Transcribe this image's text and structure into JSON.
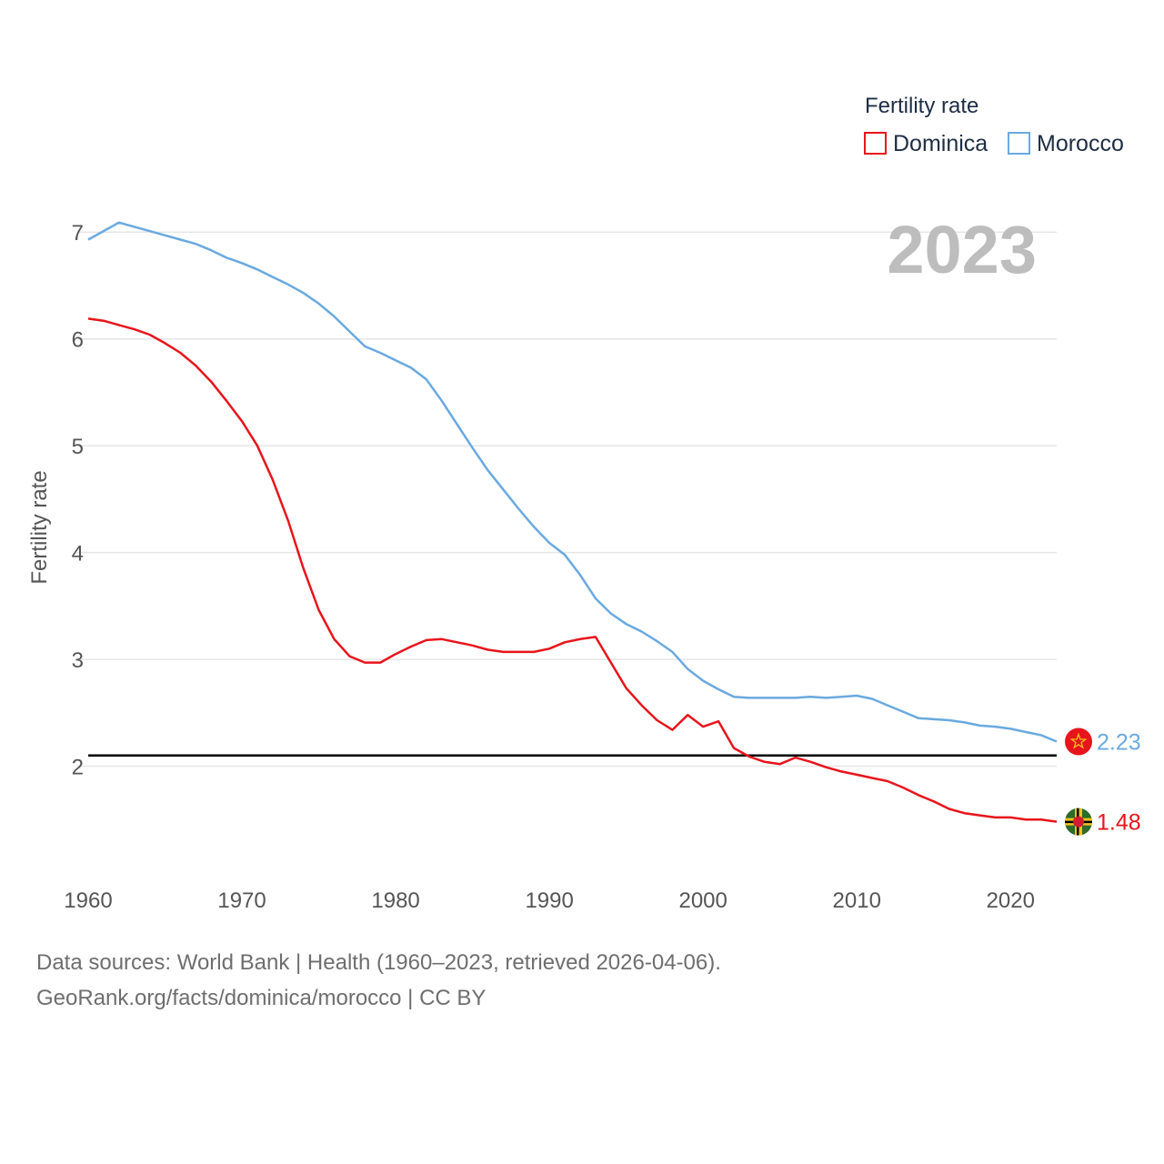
{
  "chart_data": {
    "type": "line",
    "title": "",
    "ylabel": "Fertility rate",
    "xlabel": "",
    "xlim": [
      1960,
      2023
    ],
    "ylim": [
      1.0,
      7.3
    ],
    "xticks": [
      1960,
      1970,
      1980,
      1990,
      2000,
      2010,
      2020
    ],
    "yticks": [
      2,
      3,
      4,
      5,
      6,
      7
    ],
    "grid": true,
    "year_display": "2023",
    "legend": {
      "title": "Fertility rate",
      "position": "top-right"
    },
    "reference_line": {
      "value": 2.1,
      "color": "#000000"
    },
    "x": [
      1960,
      1961,
      1962,
      1963,
      1964,
      1965,
      1966,
      1967,
      1968,
      1969,
      1970,
      1971,
      1972,
      1973,
      1974,
      1975,
      1976,
      1977,
      1978,
      1979,
      1980,
      1981,
      1982,
      1983,
      1984,
      1985,
      1986,
      1987,
      1988,
      1989,
      1990,
      1991,
      1992,
      1993,
      1994,
      1995,
      1996,
      1997,
      1998,
      1999,
      2000,
      2001,
      2002,
      2003,
      2004,
      2005,
      2006,
      2007,
      2008,
      2009,
      2010,
      2011,
      2012,
      2013,
      2014,
      2015,
      2016,
      2017,
      2018,
      2019,
      2020,
      2021,
      2022,
      2023
    ],
    "series": [
      {
        "name": "Dominica",
        "color": "#e8141b",
        "end_value": "1.48",
        "values": [
          6.19,
          6.17,
          6.13,
          6.09,
          6.04,
          5.96,
          5.87,
          5.75,
          5.6,
          5.42,
          5.23,
          5.0,
          4.68,
          4.3,
          3.85,
          3.46,
          3.19,
          3.03,
          2.97,
          2.97,
          3.05,
          3.12,
          3.18,
          3.19,
          3.16,
          3.13,
          3.09,
          3.07,
          3.07,
          3.07,
          3.1,
          3.16,
          3.19,
          3.21,
          2.97,
          2.73,
          2.57,
          2.43,
          2.34,
          2.48,
          2.37,
          2.42,
          2.17,
          2.09,
          2.04,
          2.02,
          2.08,
          2.04,
          1.99,
          1.95,
          1.92,
          1.89,
          1.86,
          1.8,
          1.73,
          1.67,
          1.6,
          1.56,
          1.54,
          1.52,
          1.52,
          1.5,
          1.5,
          1.48
        ]
      },
      {
        "name": "Morocco",
        "color": "#6aa9e0",
        "end_value": "2.23",
        "values": [
          6.93,
          7.01,
          7.09,
          7.05,
          7.01,
          6.97,
          6.93,
          6.89,
          6.83,
          6.76,
          6.71,
          6.65,
          6.58,
          6.51,
          6.43,
          6.33,
          6.21,
          6.07,
          5.93,
          5.87,
          5.8,
          5.73,
          5.62,
          5.42,
          5.2,
          4.98,
          4.77,
          4.59,
          4.41,
          4.24,
          4.09,
          3.98,
          3.79,
          3.57,
          3.43,
          3.33,
          3.26,
          3.17,
          3.07,
          2.91,
          2.8,
          2.72,
          2.65,
          2.64,
          2.64,
          2.64,
          2.64,
          2.65,
          2.64,
          2.65,
          2.66,
          2.63,
          2.57,
          2.51,
          2.45,
          2.44,
          2.43,
          2.41,
          2.38,
          2.37,
          2.35,
          2.32,
          2.29,
          2.23
        ]
      }
    ],
    "flags": [
      {
        "country": "Morocco",
        "icon": "morocco-flag-icon"
      },
      {
        "country": "Dominica",
        "icon": "dominica-flag-icon"
      }
    ]
  },
  "footer": {
    "sources": "Data sources: World Bank | Health (1960–2023, retrieved 2026-04-06).",
    "credit": "GeoRank.org/facts/dominica/morocco | CC BY"
  }
}
